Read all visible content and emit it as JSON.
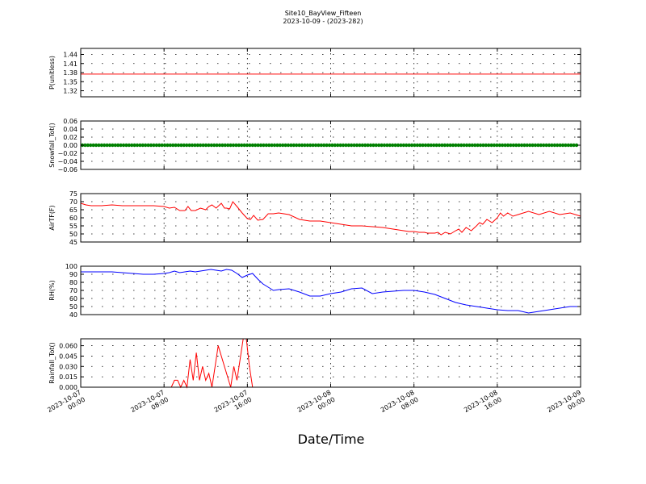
{
  "figure": {
    "title": "Site10_BayView_Fifteen",
    "subtitle": "2023-10-09 - (2023-282)",
    "xlabel": "Date/Time"
  },
  "chart_data": [
    {
      "type": "line",
      "ylabel": "P(unitless)",
      "ylim": [
        1.3,
        1.46
      ],
      "yticks": [
        "1.32",
        "1.35",
        "1.38",
        "1.41",
        "1.44"
      ],
      "ytick_values": [
        1.32,
        1.35,
        1.38,
        1.41,
        1.44
      ],
      "xlim": [
        0,
        48
      ],
      "grid": true,
      "series": [
        {
          "color": "#ff0000",
          "marker": "none",
          "x": [
            0,
            48
          ],
          "y": [
            1.375,
            1.375
          ]
        }
      ]
    },
    {
      "type": "line",
      "ylabel": "Snowfall_Tot()",
      "ylim": [
        -0.06,
        0.06
      ],
      "yticks": [
        "−0.06",
        "−0.04",
        "−0.02",
        "0.00",
        "0.02",
        "0.04",
        "0.06"
      ],
      "ytick_values": [
        -0.06,
        -0.04,
        -0.02,
        0.0,
        0.02,
        0.04,
        0.06
      ],
      "xlim": [
        0,
        48
      ],
      "grid": true,
      "series": [
        {
          "color": "#008000",
          "marker": "dots",
          "x": [
            0,
            48
          ],
          "y": [
            0,
            0
          ]
        }
      ]
    },
    {
      "type": "line",
      "ylabel": "AirTF(F)",
      "ylim": [
        45,
        75
      ],
      "yticks": [
        "45",
        "50",
        "55",
        "60",
        "65",
        "70",
        "75"
      ],
      "ytick_values": [
        45,
        50,
        55,
        60,
        65,
        70,
        75
      ],
      "xlim": [
        0,
        48
      ],
      "grid": true,
      "series": [
        {
          "color": "#ff0000",
          "marker": "none",
          "x": [
            0,
            0.5,
            1,
            2,
            3,
            4,
            5,
            6,
            7,
            8,
            8.5,
            9,
            9.5,
            10,
            10.3,
            10.6,
            11,
            11.5,
            12,
            12.3,
            12.6,
            13,
            13.5,
            13.8,
            14,
            14.3,
            14.6,
            15,
            15.5,
            16,
            16.3,
            16.6,
            17,
            17.5,
            18,
            18.5,
            19,
            20,
            21,
            22,
            23,
            24,
            25,
            26,
            27,
            28,
            29,
            30,
            31,
            31.5,
            32,
            32.5,
            33,
            33.3,
            33.6,
            34,
            34.3,
            34.6,
            35,
            35.5,
            36,
            36.3,
            36.6,
            37,
            37.5,
            38,
            38.3,
            38.6,
            39,
            39.5,
            40,
            40.3,
            40.6,
            41,
            41.5,
            42,
            42.5,
            43,
            44,
            45,
            46,
            47,
            48
          ],
          "y": [
            69,
            68,
            67.5,
            67.5,
            68,
            67.5,
            67.5,
            67.5,
            67.5,
            67,
            66,
            66.5,
            64.5,
            64.5,
            67,
            64.5,
            64.5,
            66,
            65,
            67,
            68,
            66,
            69,
            66,
            66,
            65.5,
            70,
            67,
            63,
            59.5,
            59,
            61.5,
            58.5,
            59,
            62.5,
            62.5,
            63,
            62,
            59,
            58,
            58,
            57,
            56,
            55,
            55,
            54.5,
            54,
            53,
            52,
            51.5,
            51.5,
            51,
            51,
            50.5,
            50.5,
            50.5,
            51,
            49.5,
            51,
            50,
            52,
            53,
            51,
            54,
            52,
            55,
            57,
            56,
            59,
            57,
            60,
            63,
            61,
            63,
            61,
            62,
            63,
            64,
            62,
            64,
            62,
            63,
            61
          ]
        }
      ]
    },
    {
      "type": "line",
      "ylabel": "RH(%)",
      "ylim": [
        40,
        100
      ],
      "yticks": [
        "40",
        "50",
        "60",
        "70",
        "80",
        "90",
        "100"
      ],
      "ytick_values": [
        40,
        50,
        60,
        70,
        80,
        90,
        100
      ],
      "xlim": [
        0,
        48
      ],
      "grid": true,
      "series": [
        {
          "color": "#0000ff",
          "marker": "none",
          "x": [
            0,
            1,
            2,
            3,
            4,
            5,
            6,
            7,
            8,
            8.5,
            9,
            9.5,
            10,
            10.5,
            11,
            11.5,
            12,
            12.5,
            13,
            13.5,
            14,
            14.5,
            15,
            15.5,
            16,
            16.5,
            17,
            17.5,
            18,
            18.5,
            19,
            20,
            21,
            22,
            23,
            24,
            25,
            26,
            27,
            28,
            29,
            30,
            31,
            32,
            33,
            34,
            35,
            36,
            37,
            38,
            39,
            40,
            41,
            42,
            43,
            44,
            45,
            46,
            47,
            48
          ],
          "y": [
            93,
            93,
            93,
            93,
            92,
            91,
            90,
            90,
            91,
            92,
            94,
            92,
            93,
            94,
            93,
            94,
            95,
            96,
            95,
            94,
            96,
            95,
            91,
            86,
            89,
            91,
            84,
            78,
            74,
            70,
            71,
            72,
            68,
            63,
            63,
            66,
            68,
            72,
            73,
            66,
            68,
            69,
            70,
            70,
            68,
            65,
            60,
            55,
            52,
            50,
            48,
            46,
            45,
            45,
            42,
            44,
            46,
            48,
            50,
            50
          ]
        }
      ]
    },
    {
      "type": "line",
      "ylabel": "Rainfall_Tot()",
      "ylim": [
        0,
        0.07
      ],
      "yticks": [
        "0.000",
        "0.015",
        "0.030",
        "0.045",
        "0.060"
      ],
      "ytick_values": [
        0.0,
        0.015,
        0.03,
        0.045,
        0.06
      ],
      "xlim": [
        0,
        48
      ],
      "grid": true,
      "series": [
        {
          "color": "#ff0000",
          "marker": "none",
          "x": [
            0,
            8.7,
            9,
            9.3,
            9.6,
            9.9,
            10.2,
            10.5,
            10.8,
            11.1,
            11.4,
            11.7,
            12,
            12.3,
            12.6,
            12.9,
            13.2,
            14.4,
            14.7,
            15,
            15.3,
            15.6,
            15.9,
            16.2,
            16.5,
            48
          ],
          "y": [
            0,
            0,
            0.01,
            0.01,
            0,
            0.01,
            0,
            0.04,
            0.01,
            0.05,
            0.01,
            0.03,
            0.01,
            0.02,
            0,
            0.03,
            0.06,
            0,
            0.03,
            0.01,
            0.04,
            0.07,
            0.07,
            0.03,
            0,
            0
          ]
        }
      ]
    }
  ],
  "xticks": [
    {
      "x": 0,
      "date": "2023-10-07",
      "time": "00:00"
    },
    {
      "x": 8,
      "date": "2023-10-07",
      "time": "08:00"
    },
    {
      "x": 16,
      "date": "2023-10-07",
      "time": "16:00"
    },
    {
      "x": 24,
      "date": "2023-10-08",
      "time": "00:00"
    },
    {
      "x": 32,
      "date": "2023-10-08",
      "time": "08:00"
    },
    {
      "x": 40,
      "date": "2023-10-08",
      "time": "16:00"
    },
    {
      "x": 48,
      "date": "2023-10-09",
      "time": "00:00"
    }
  ]
}
